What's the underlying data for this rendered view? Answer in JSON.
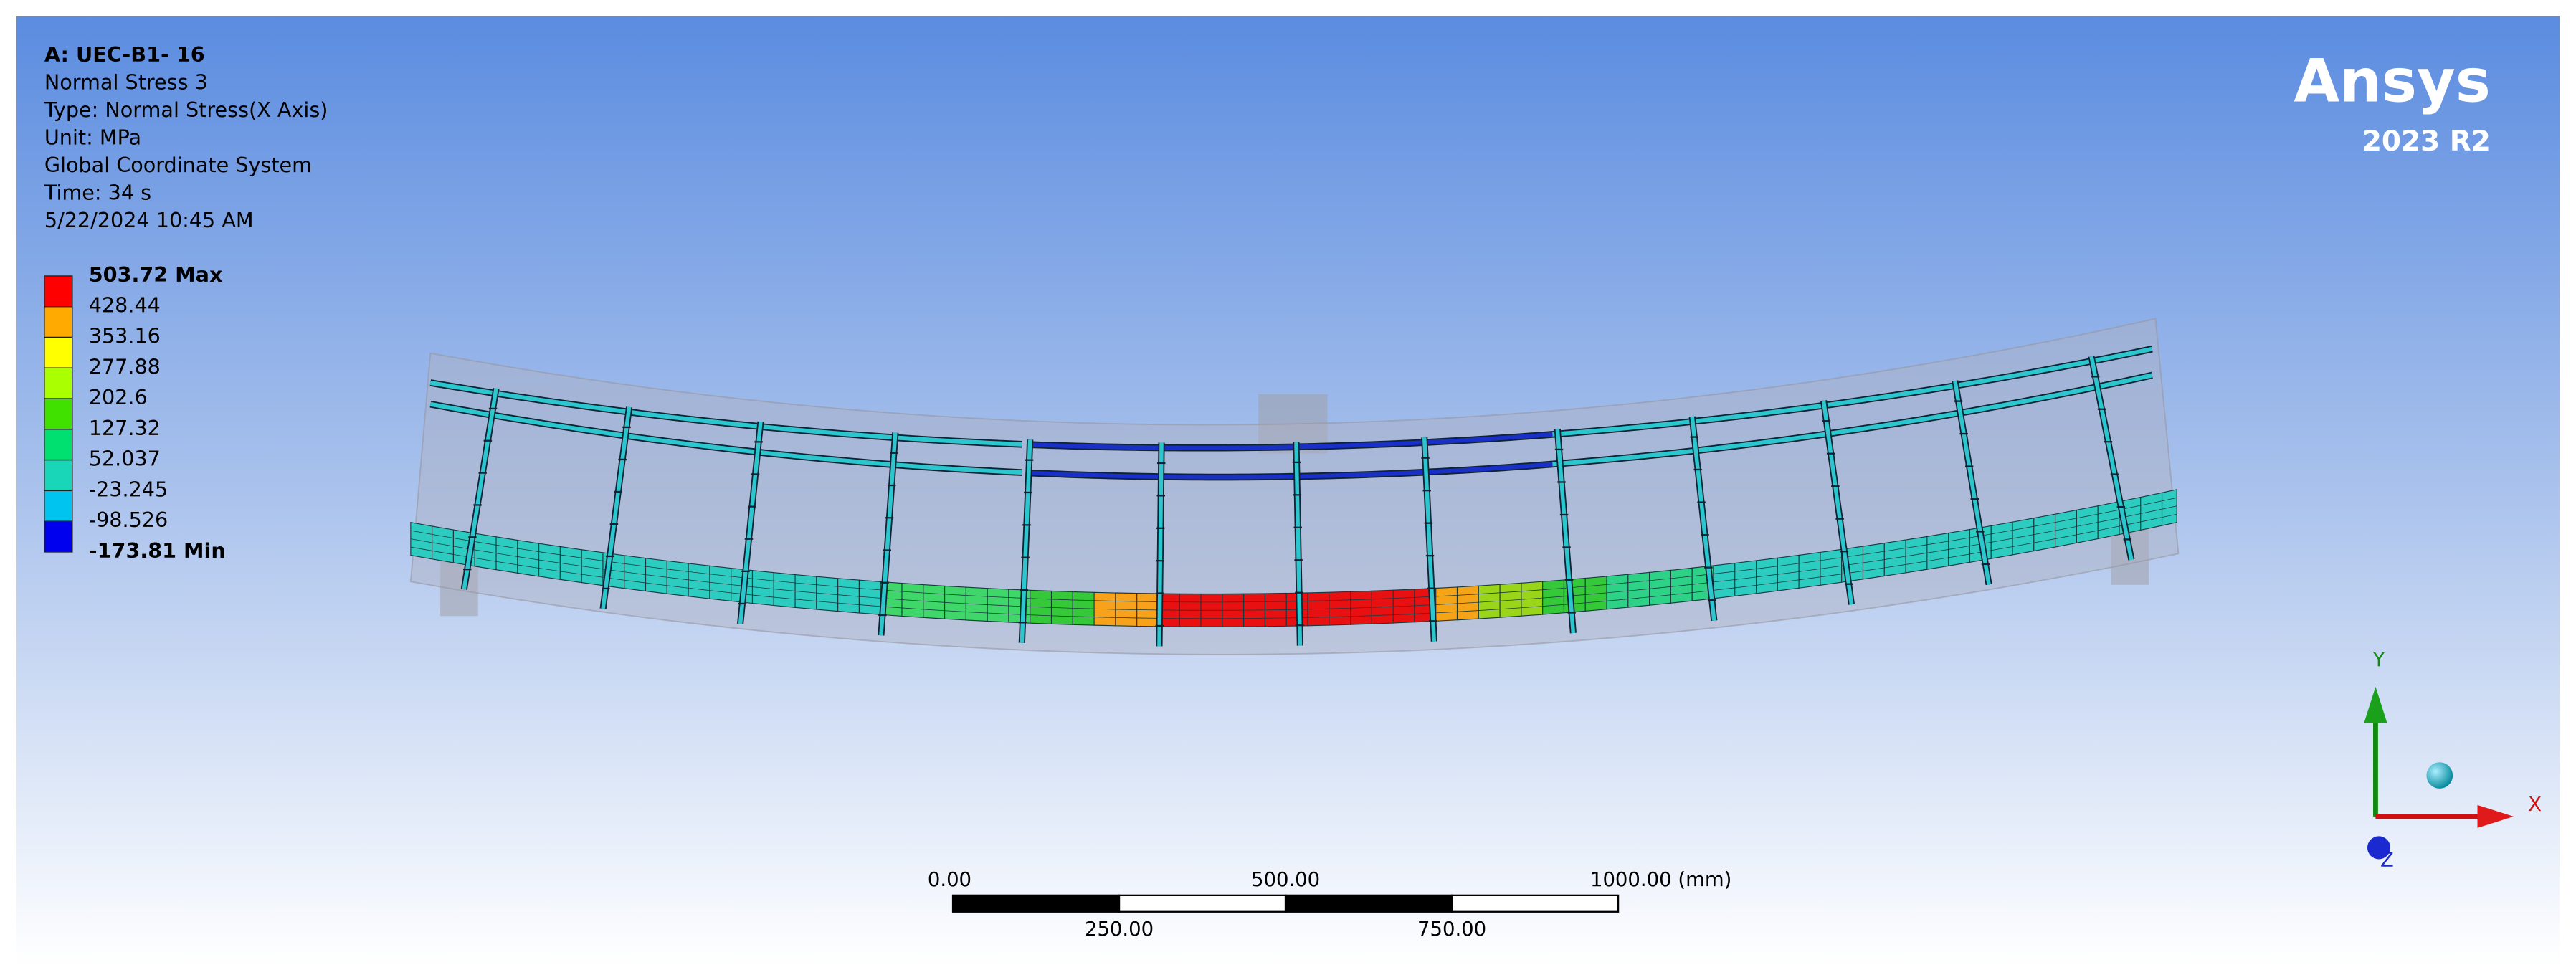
{
  "header": {
    "lines": [
      "A: UEC-B1- 16",
      "Normal Stress 3",
      "Type: Normal Stress(X Axis)",
      "Unit: MPa",
      "Global Coordinate System",
      "Time: 34 s",
      "5/22/2024 10:45 AM"
    ]
  },
  "legend": {
    "labels": [
      "503.72 Max",
      "428.44",
      "353.16",
      "277.88",
      "202.6",
      "127.32",
      "52.037",
      "-23.245",
      "-98.526",
      "-173.81 Min"
    ],
    "colors": [
      "#ff0000",
      "#ffaa00",
      "#ffff00",
      "#aaff00",
      "#40e000",
      "#00e070",
      "#19d6b8",
      "#00c4f0",
      "#0000ee"
    ]
  },
  "logo": {
    "name": "Ansys",
    "version": "2023 R2"
  },
  "scale_bar": {
    "top_labels": [
      "0.00",
      "500.00",
      "1000.00 (mm)"
    ],
    "bottom_labels": [
      "250.00",
      "750.00"
    ]
  },
  "triad": {
    "x": "X",
    "y": "Y",
    "z": "Z"
  }
}
